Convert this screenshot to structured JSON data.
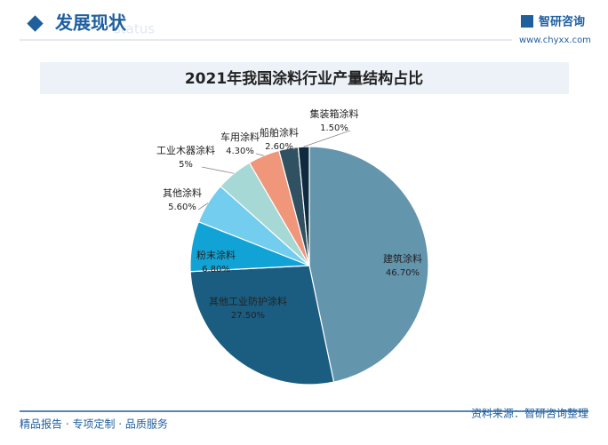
{
  "page": {
    "section": "发展现状",
    "section_en": "status",
    "brand": "智研咨询",
    "website": "www.chyxx.com",
    "footer_left": "精品报告 · 专项定制 · 品质服务",
    "source": "资料来源：智研咨询整理"
  },
  "chart_data": {
    "type": "pie",
    "title": "2021年我国涂料行业产量结构占比",
    "categories": [
      "建筑涂料",
      "其他工业防护涂料",
      "粉末涂料",
      "其他涂料",
      "工业木器涂料",
      "车用涂料",
      "船舶涂料",
      "集装箱涂料"
    ],
    "values": [
      46.7,
      27.5,
      6.8,
      5.6,
      5,
      4.3,
      2.6,
      1.5
    ],
    "value_labels": [
      "46.70%",
      "27.50%",
      "6.80%",
      "5.60%",
      "5%",
      "4.30%",
      "2.60%",
      "1.50%"
    ],
    "colors": [
      "#6395ad",
      "#1b5d80",
      "#12a3d6",
      "#72cdee",
      "#a6d8d5",
      "#ef967b",
      "#2f5161",
      "#0f2b3f"
    ]
  }
}
